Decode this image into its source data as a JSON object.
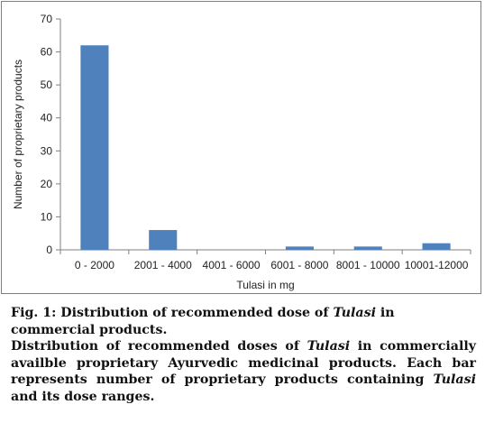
{
  "chart_data": {
    "type": "bar",
    "categories": [
      "0 - 2000",
      "2001 - 4000",
      "4001 - 6000",
      "6001 - 8000",
      "8001 - 10000",
      "10001-12000"
    ],
    "values": [
      62,
      6,
      0,
      1,
      1,
      2
    ],
    "xlabel": "Tulasi in mg",
    "ylabel": "Number of proprietary products",
    "ylim": [
      0,
      70
    ],
    "yticks": [
      0,
      10,
      20,
      30,
      40,
      50,
      60,
      70
    ],
    "grid": false,
    "legend": "none",
    "bar_color": "#4f81bd"
  },
  "caption": {
    "title_prefix": "Fig. 1: Distribution of recommended dose of ",
    "title_italic": "Tulasi",
    "title_suffix": " in commercial products.",
    "body_prefix": "Distribution of recommended doses of ",
    "body_italic1": "Tulasi",
    "body_mid": " in commercially availble proprietary Ayurvedic medicinal products. Each bar represents number of proprietary products containing ",
    "body_italic2": "Tulasi",
    "body_suffix": " and its dose ranges."
  }
}
